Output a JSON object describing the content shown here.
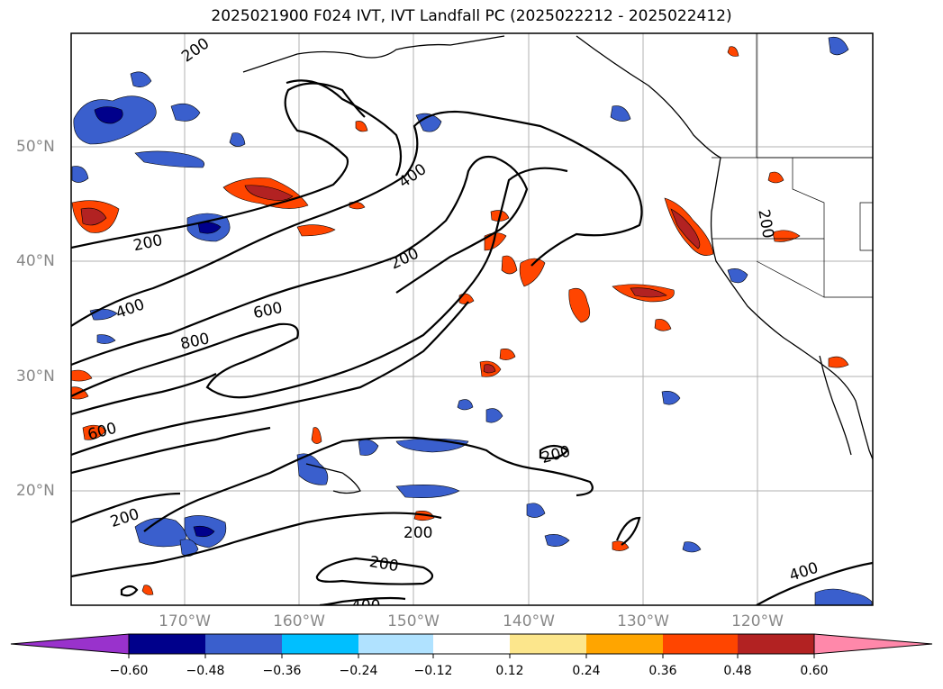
{
  "title": "2025021900 F024 IVT, IVT Landfall PC (2025022212 - 2025022412)",
  "lat_labels": [
    "50°N",
    "40°N",
    "30°N",
    "20°N"
  ],
  "lon_labels": [
    "170°W",
    "160°W",
    "150°W",
    "140°W",
    "130°W",
    "120°W"
  ],
  "contour_labels": [
    "200",
    "200",
    "400",
    "200",
    "400",
    "600",
    "800",
    "600",
    "200",
    "200",
    "200",
    "200",
    "400",
    "200",
    "400"
  ],
  "colorbar": {
    "ticks": [
      "−0.60",
      "−0.48",
      "−0.36",
      "−0.24",
      "−0.12",
      "0.12",
      "0.24",
      "0.36",
      "0.48",
      "0.60"
    ],
    "colors": [
      "#9932cc",
      "#00008b",
      "#3a5fcd",
      "#00bfff",
      "#b0e2ff",
      "#ffffff",
      "#fce68c",
      "#ffa500",
      "#ff4500",
      "#b22222",
      "#ff88aa"
    ]
  }
}
